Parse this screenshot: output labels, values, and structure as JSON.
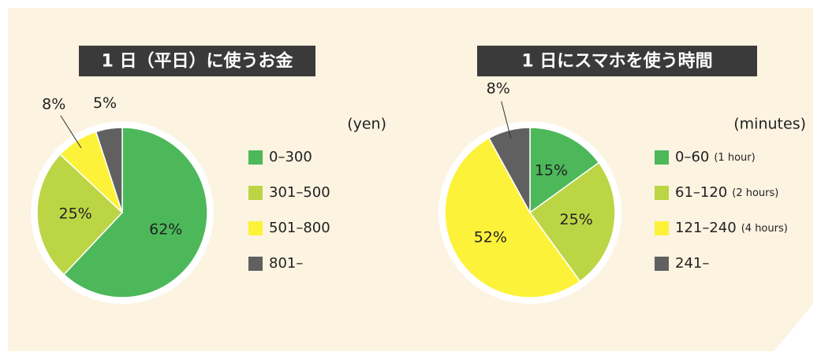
{
  "chart_data": [
    {
      "type": "pie",
      "title": "1 日（平日）に使うお金",
      "unit_label": "(yen)",
      "categories": [
        "0–300",
        "301–500",
        "501–800",
        "801–"
      ],
      "category_notes": [
        null,
        null,
        null,
        null
      ],
      "values": [
        62,
        25,
        8,
        5
      ],
      "value_labels": [
        "62%",
        "25%",
        "8%",
        "5%"
      ],
      "colors": [
        "#4cb85a",
        "#bcd544",
        "#fdf23a",
        "#606060"
      ]
    },
    {
      "type": "pie",
      "title": "1 日にスマホを使う時間",
      "unit_label": "(minutes)",
      "categories": [
        "0–60",
        "61–120",
        "121–240",
        "241–"
      ],
      "category_notes": [
        "(1 hour)",
        "(2 hours)",
        "(4 hours)",
        null
      ],
      "values": [
        15,
        25,
        52,
        8
      ],
      "value_labels": [
        "15%",
        "25%",
        "52%",
        "8%"
      ],
      "colors": [
        "#4cb85a",
        "#bcd544",
        "#fdf23a",
        "#606060"
      ]
    }
  ]
}
